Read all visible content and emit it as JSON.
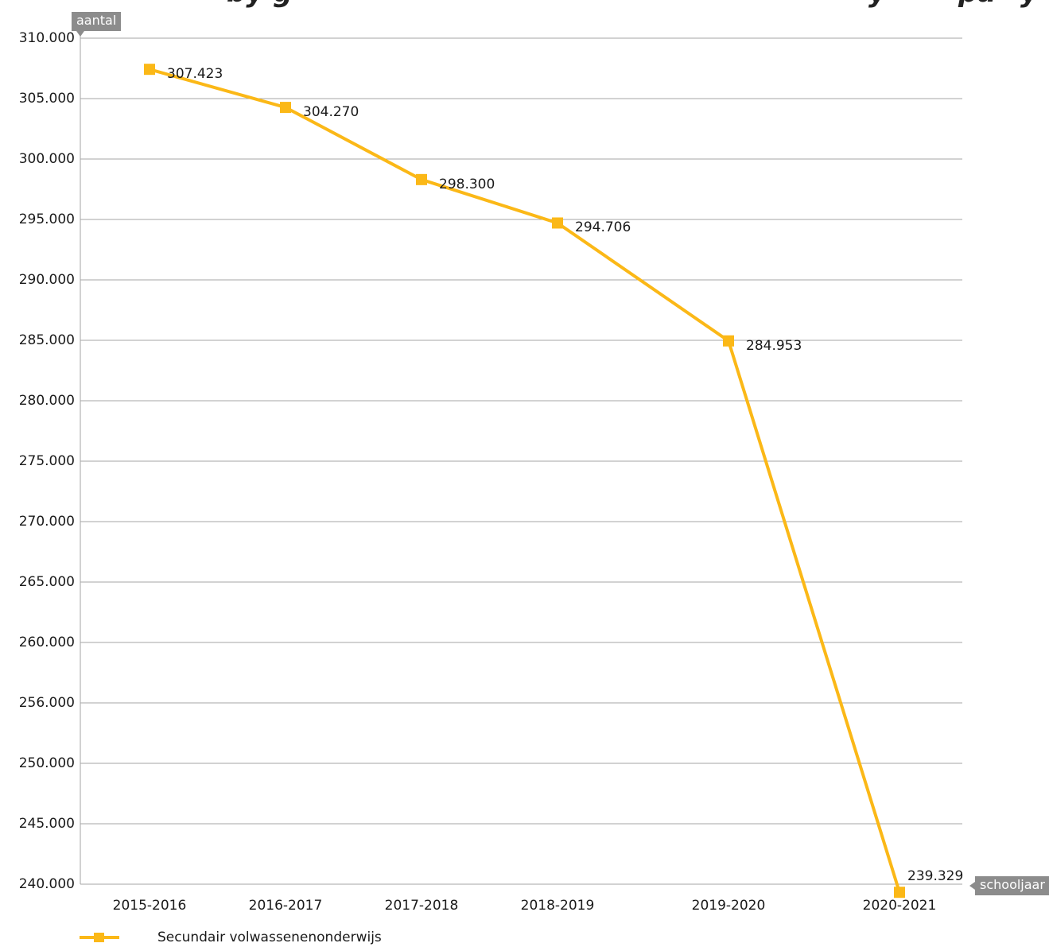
{
  "chart_data": {
    "type": "line",
    "title": "",
    "xlabel": "schooljaar",
    "ylabel": "aantal",
    "categories": [
      "2015-2016",
      "2016-2017",
      "2017-2018",
      "2018-2019",
      "2019-2020",
      "2020-2021"
    ],
    "series": [
      {
        "name": "Secundair volwassenenonderwijs",
        "values": [
          307423,
          304270,
          298300,
          294706,
          284953,
          239329
        ],
        "labels": [
          "307.423",
          "304.270",
          "298.300",
          "294.706",
          "284.953",
          "239.329"
        ]
      }
    ],
    "y_ticks": [
      "310.000",
      "305.000",
      "300.000",
      "295.000",
      "290.000",
      "285.000",
      "280.000",
      "275.000",
      "270.000",
      "265.000",
      "260.000",
      "256.000",
      "250.000",
      "245.000",
      "240.000"
    ],
    "ylim": [
      240000,
      310000
    ],
    "grid": true,
    "legend_position": "bottom-left",
    "colors": {
      "series": "#fbb817",
      "grid": "#a6a6a6",
      "tag": "#8c8c8c",
      "text": "#1a1a1a"
    }
  }
}
